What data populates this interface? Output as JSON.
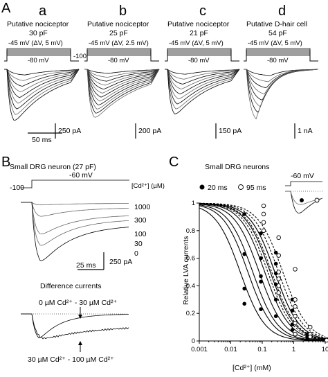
{
  "panel_labels": {
    "A": "A",
    "B": "B",
    "C": "C"
  },
  "panel_a": {
    "cells": [
      {
        "letter": "a",
        "type": "Putative nociceptor",
        "capacitance": "30 pF",
        "step": "-45 mV (ΔV, 5 mV)",
        "scale": "250 pA"
      },
      {
        "letter": "b",
        "type": "Putative nociceptor",
        "capacitance": "25 pF",
        "step": "-45 mV (ΔV, 2.5 mV)",
        "scale": "200 pA"
      },
      {
        "letter": "c",
        "type": "Putative nociceptor",
        "capacitance": "21 pF",
        "step": "-45 mV (ΔV, 5 mV)",
        "scale": "150 pA"
      },
      {
        "letter": "d",
        "type": "Putative D-hair cell",
        "capacitance": "54 pF",
        "step": "-45 mV (ΔV, 5 mV)",
        "scale": "1 nA"
      }
    ],
    "holding": "-80 mV",
    "return": "-100",
    "time_scale": "50 ms"
  },
  "panel_b": {
    "title": "Small DRG neuron (27 pF)",
    "holding": "-100",
    "step": "-60 mV",
    "conc_label": "[Cd²⁺] (µM)",
    "concentrations": [
      "1000",
      "300",
      "100",
      "30",
      "0"
    ],
    "time_scale": "25 ms",
    "amp_scale": "250 pA",
    "diff_title": "Difference currents",
    "diff_top": "0 µM Cd²⁺ - 30 µM Cd²⁺",
    "diff_bottom": "30 µM Cd²⁺ - 100 µM Cd²⁺"
  },
  "panel_c": {
    "title": "Small DRG neurons",
    "legend": [
      "20 ms",
      "95 ms"
    ],
    "inset_step": "-60 mV",
    "chart_data": {
      "type": "scatter",
      "xlabel": "[Cd²⁺] (mM)",
      "ylabel": "Relative LVA currents",
      "x_scale": "log",
      "xlim": [
        0.001,
        10
      ],
      "ylim": [
        0,
        1
      ],
      "x_ticks": [
        "0.001",
        "0.01",
        "0.1",
        "1",
        "10"
      ],
      "y_ticks": [
        "0",
        "0.2",
        "0.4",
        "0.6",
        "0.8",
        "1"
      ],
      "series": [
        {
          "name": "20 ms",
          "marker": "filled-circle",
          "x": [
            0.03,
            0.03,
            0.03,
            0.03,
            0.1,
            0.1,
            0.1,
            0.1,
            0.1,
            0.3,
            0.3,
            0.3,
            0.3,
            0.3,
            0.3,
            1,
            1,
            1,
            1,
            3,
            3,
            3,
            10
          ],
          "y": [
            0.92,
            0.63,
            0.38,
            0.27,
            0.78,
            0.6,
            0.47,
            0.43,
            0.23,
            0.64,
            0.56,
            0.49,
            0.41,
            0.3,
            0.18,
            0.3,
            0.22,
            0.12,
            0.08,
            0.05,
            0.03,
            0.02,
            0.01
          ],
          "fit_ic50": [
            0.02,
            0.035,
            0.05,
            0.08,
            0.12,
            0.18,
            0.25
          ]
        },
        {
          "name": "95 ms",
          "marker": "open-circle",
          "x": [
            0.1,
            0.1,
            0.1,
            0.1,
            0.3,
            0.3,
            0.3,
            0.3,
            0.3,
            0.3,
            1,
            1,
            1,
            1,
            1,
            1,
            3,
            3,
            3,
            10,
            10
          ],
          "y": [
            0.98,
            0.92,
            0.86,
            0.8,
            0.75,
            0.62,
            0.5,
            0.45,
            0.4,
            0.35,
            0.52,
            0.3,
            0.25,
            0.18,
            0.13,
            0.05,
            0.1,
            0.05,
            0.03,
            0.01,
            0.005
          ],
          "fit_ic50": [
            0.15,
            0.2,
            0.25,
            0.33,
            0.45
          ]
        }
      ]
    }
  }
}
